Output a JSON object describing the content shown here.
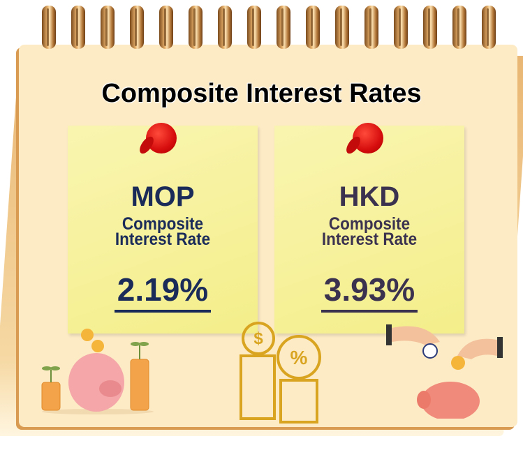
{
  "title": "Composite Interest Rates",
  "cards": [
    {
      "currency": "MOP",
      "label_line1": "Composite",
      "label_line2": "Interest Rate",
      "rate": "2.19%",
      "color": "#1a2b5a"
    },
    {
      "currency": "HKD",
      "label_line1": "Composite",
      "label_line2": "Interest Rate",
      "rate": "3.93%",
      "color": "#3b3250"
    }
  ],
  "icons": [
    "push-pin-icon",
    "piggy-bank-icon",
    "coin-stack-icon",
    "dollar-coin-icon",
    "percent-coin-icon",
    "hands-icon",
    "clock-icon"
  ]
}
